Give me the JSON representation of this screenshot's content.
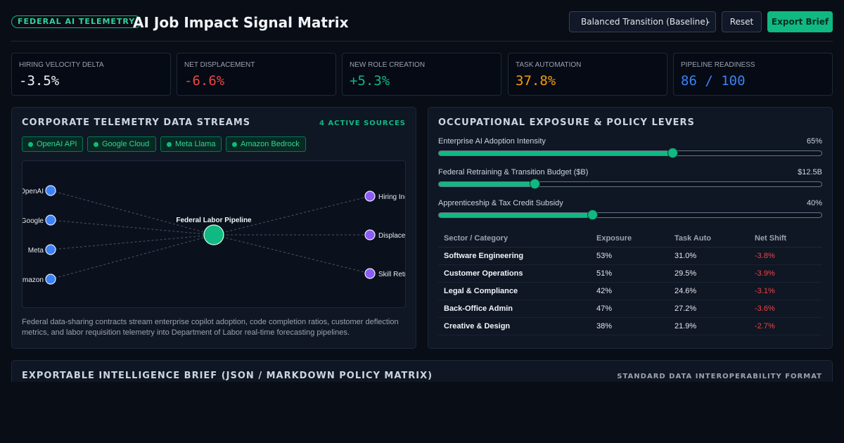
{
  "header": {
    "badge": "FEDERAL AI TELEMETRY",
    "title": "AI Job Impact Signal Matrix",
    "scenario_selected": "Balanced Transition (Baseline)",
    "reset_label": "Reset",
    "export_label": "Export Brief"
  },
  "kpis": [
    {
      "label": "HIRING VELOCITY DELTA",
      "value": "-3.5%",
      "color": "#f1f5f9"
    },
    {
      "label": "NET DISPLACEMENT",
      "value": "-6.6%",
      "color": "#ef4444"
    },
    {
      "label": "NEW ROLE CREATION",
      "value": "+5.3%",
      "color": "#10b981"
    },
    {
      "label": "TASK AUTOMATION",
      "value": "37.8%",
      "color": "#f59e0b"
    },
    {
      "label": "PIPELINE READINESS",
      "value": "86 / 100",
      "color": "#3b82f6"
    }
  ],
  "streams": {
    "title": "CORPORATE TELEMETRY DATA STREAMS",
    "active_tag": "4 ACTIVE SOURCES",
    "chips": [
      "OpenAI API",
      "Google Cloud",
      "Meta Llama",
      "Amazon Bedrock"
    ],
    "network": {
      "sources": [
        "OpenAI",
        "Google",
        "Meta",
        "Amazon"
      ],
      "hub": "Federal Labor Pipeline",
      "outputs": [
        "Hiring Index",
        "Displacement",
        "Skill Retraining"
      ]
    },
    "description": "Federal data-sharing contracts stream enterprise copilot adoption, code completion ratios, customer deflection metrics, and labor requisition telemetry into Department of Labor real-time forecasting pipelines."
  },
  "exposure": {
    "title": "OCCUPATIONAL EXPOSURE & POLICY LEVERS",
    "sliders": [
      {
        "label": "Enterprise AI Adoption Intensity",
        "value_text": "65%",
        "level": 0.61
      },
      {
        "label": "Federal Retraining & Transition Budget ($B)",
        "value_text": "$12.5B",
        "level": 0.25
      },
      {
        "label": "Apprenticeship & Tax Credit Subsidy",
        "value_text": "40%",
        "level": 0.4
      }
    ],
    "table": {
      "headers": [
        "Sector / Category",
        "Exposure",
        "Task Auto",
        "Net Shift"
      ],
      "rows": [
        [
          "Software Engineering",
          "53%",
          "31.0%",
          "-3.8%"
        ],
        [
          "Customer Operations",
          "51%",
          "29.5%",
          "-3.9%"
        ],
        [
          "Legal & Compliance",
          "42%",
          "24.6%",
          "-3.1%"
        ],
        [
          "Back-Office Admin",
          "47%",
          "27.2%",
          "-3.6%"
        ],
        [
          "Creative & Design",
          "38%",
          "21.9%",
          "-2.7%"
        ]
      ]
    }
  },
  "brief": {
    "title": "EXPORTABLE INTELLIGENCE BRIEF (JSON / MARKDOWN POLICY MATRIX)",
    "tag": "STANDARD DATA INTEROPERABILITY FORMAT"
  }
}
